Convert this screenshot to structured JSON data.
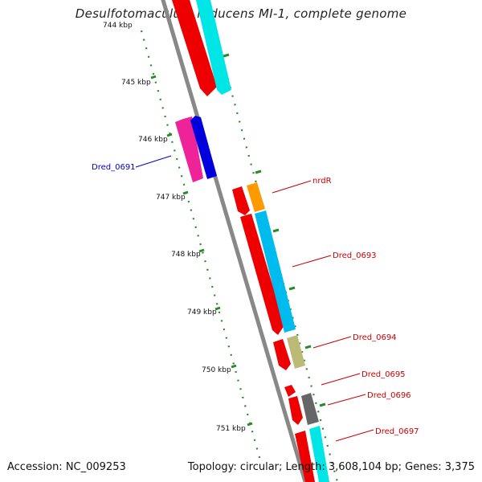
{
  "title": "Desulfotomaculum reducens MI-1, complete genome",
  "footer": {
    "accession_label": "Accession: NC_009253",
    "summary": "Topology: circular; Length: 3,608,104 bp; Genes: 3,375"
  },
  "ticks": [
    "744 kbp",
    "745 kbp",
    "746 kbp",
    "747 kbp",
    "748 kbp",
    "749 kbp",
    "750 kbp",
    "751 kbp"
  ],
  "gene_labels": [
    {
      "text": "Dred_0691",
      "color": "#0000cc"
    },
    {
      "text": "nrdR",
      "color": "#cc0000"
    },
    {
      "text": "Dred_0693",
      "color": "#cc0000"
    },
    {
      "text": "Dred_0694",
      "color": "#cc0000"
    },
    {
      "text": "Dred_0695",
      "color": "#cc0000"
    },
    {
      "text": "Dred_0696",
      "color": "#cc0000"
    },
    {
      "text": "Dred_0697",
      "color": "#cc0000"
    }
  ],
  "colors": {
    "backbone": "#888888",
    "tick_dots": "#2a8a2a",
    "gene_red": "#ee0000",
    "cds_cyan": "#00e5e5",
    "cds_skyblue": "#00bbee",
    "gene_magenta": "#ee2299",
    "gene_blue": "#0000dd",
    "gene_orange": "#ff9900",
    "gene_khaki": "#bbbb77",
    "gene_gray": "#666666",
    "blue_label": "#0000cc",
    "red_label": "#cc0000"
  }
}
